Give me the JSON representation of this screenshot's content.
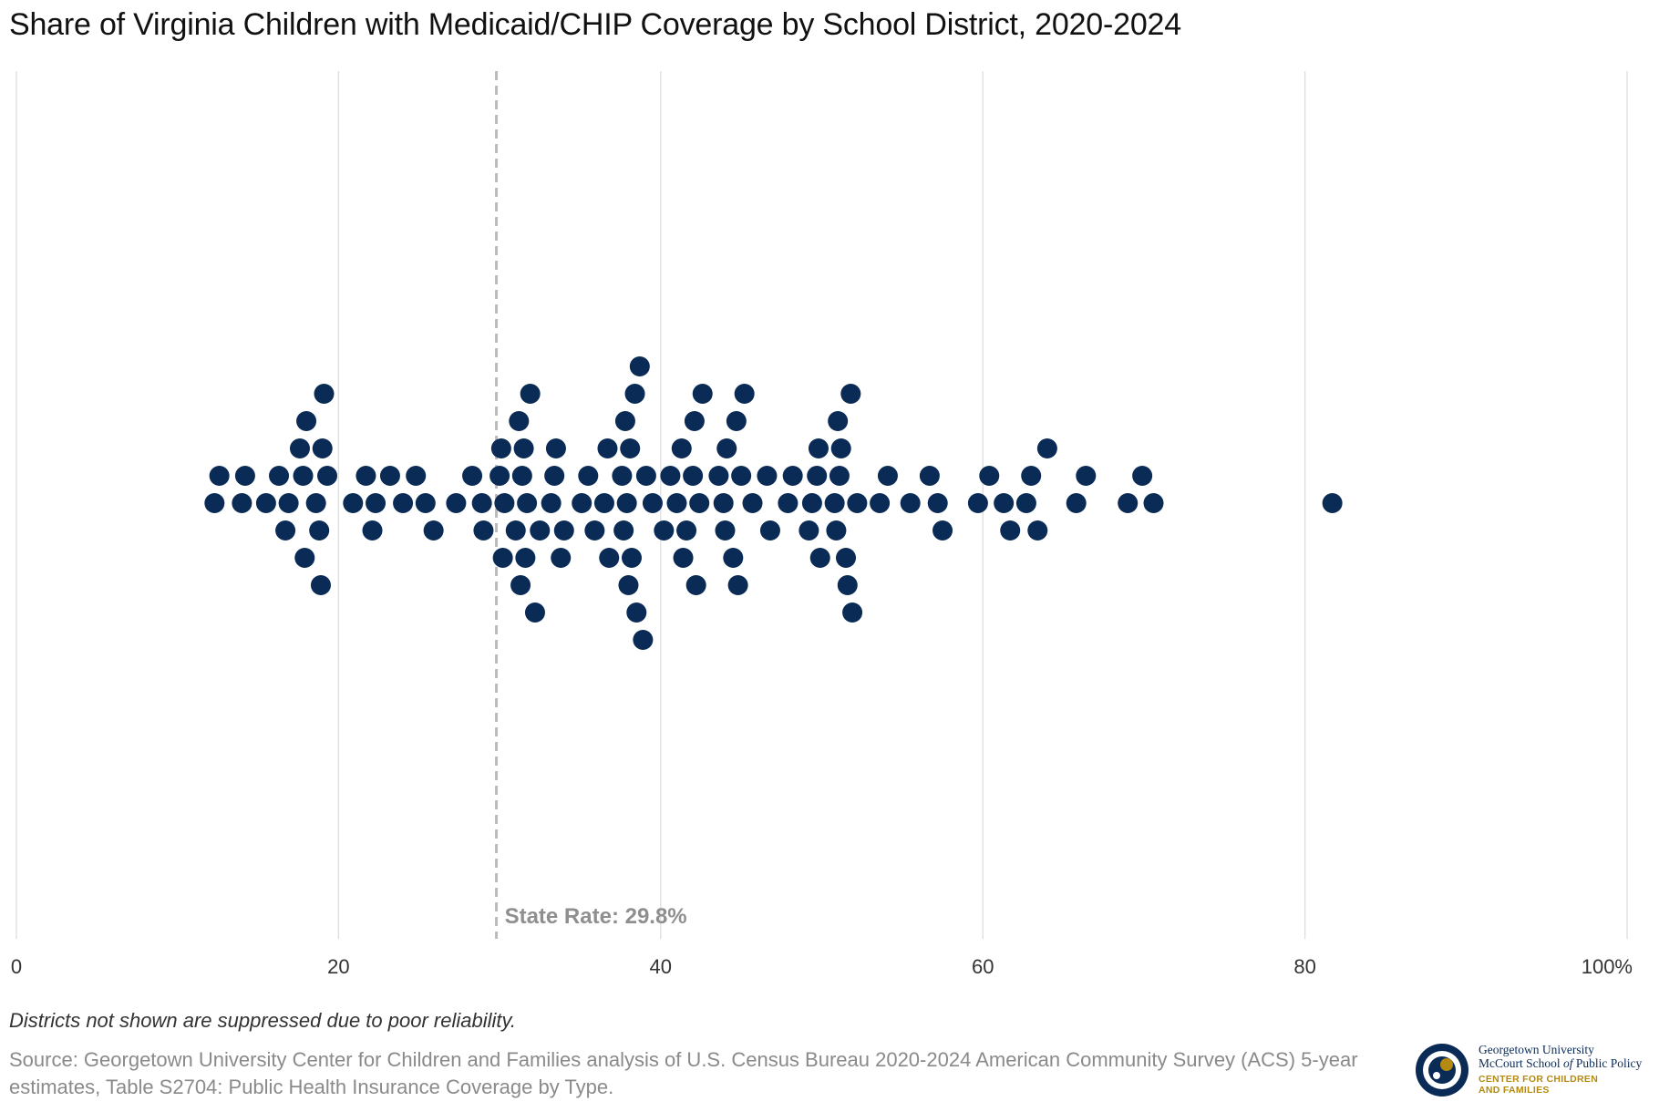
{
  "title": "Share of Virginia Children with Medicaid/CHIP Coverage by School District, 2020-2024",
  "note": "Districts not shown are suppressed due to poor reliability.",
  "source": "Source: Georgetown University Center for Children and Families analysis of U.S. Census Bureau 2020-2024 American Community Survey (ACS) 5-year estimates, Table S2704: Public Health Insurance Coverage by Type.",
  "logo": {
    "line1": "Georgetown University",
    "line2a": "McCourt School ",
    "line2b": "of",
    "line2c": " Public Policy",
    "line3": "CENTER FOR CHILDREN",
    "line4": "AND FAMILIES"
  },
  "colors": {
    "dot": "#0b2b57",
    "grid": "#dddddd",
    "reference": "#bbbbbb",
    "logo_blue": "#0b2b57",
    "logo_gold": "#b48a10"
  },
  "chart_data": {
    "type": "scatter",
    "subtype": "beeswarm",
    "title": "Share of Virginia Children with Medicaid/CHIP Coverage by School District, 2020-2024",
    "xlabel": "",
    "ylabel": "",
    "xlim": [
      0,
      100
    ],
    "x_ticks": [
      0,
      20,
      40,
      60,
      80,
      100
    ],
    "x_tick_labels": [
      "0",
      "20",
      "40",
      "60",
      "80",
      "100%"
    ],
    "grid": true,
    "reference_line": {
      "value": 29.8,
      "label": "State Rate: 29.8%"
    },
    "values": [
      12.3,
      12.6,
      14.0,
      14.2,
      15.5,
      16.3,
      16.7,
      16.9,
      17.6,
      17.8,
      17.9,
      18.0,
      18.6,
      18.8,
      18.9,
      19.0,
      19.1,
      19.3,
      20.9,
      21.7,
      22.1,
      22.3,
      23.2,
      24.0,
      24.8,
      25.4,
      25.9,
      27.3,
      28.3,
      28.9,
      29.0,
      30.0,
      30.1,
      30.2,
      30.3,
      31.0,
      31.2,
      31.3,
      31.4,
      31.5,
      31.6,
      31.7,
      31.9,
      32.2,
      32.5,
      33.2,
      33.4,
      33.5,
      33.8,
      34.0,
      35.1,
      35.5,
      35.9,
      36.5,
      36.7,
      36.8,
      37.6,
      37.7,
      37.8,
      37.9,
      38.0,
      38.1,
      38.2,
      38.4,
      38.5,
      38.7,
      38.9,
      39.1,
      39.5,
      40.2,
      40.6,
      41.0,
      41.3,
      41.4,
      41.6,
      42.0,
      42.1,
      42.2,
      42.4,
      42.6,
      43.6,
      43.9,
      44.0,
      44.1,
      44.5,
      44.7,
      44.8,
      45.0,
      45.2,
      45.7,
      46.6,
      46.8,
      47.9,
      48.2,
      49.2,
      49.4,
      49.7,
      49.8,
      49.9,
      50.8,
      50.9,
      51.0,
      51.1,
      51.2,
      51.5,
      51.6,
      51.8,
      51.9,
      52.2,
      53.6,
      54.1,
      55.5,
      56.7,
      57.2,
      57.5,
      59.7,
      60.4,
      61.3,
      61.7,
      62.7,
      63.0,
      63.4,
      64.0,
      65.8,
      66.4,
      69.0,
      69.9,
      70.6,
      81.7
    ]
  }
}
